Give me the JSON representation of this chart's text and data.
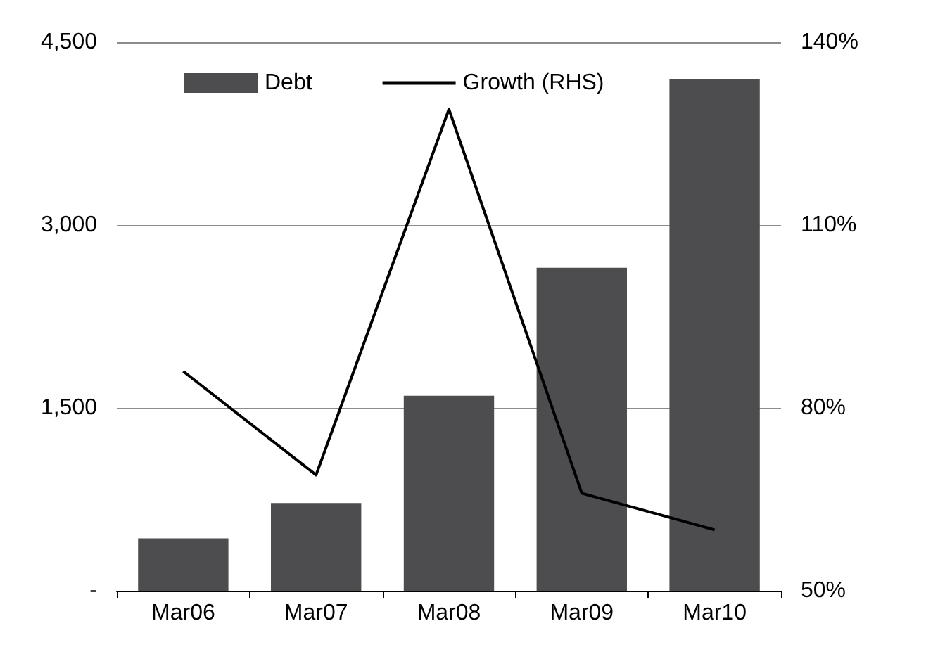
{
  "chart_data": {
    "type": "bar",
    "categories": [
      "Mar06",
      "Mar07",
      "Mar08",
      "Mar09",
      "Mar10"
    ],
    "series": [
      {
        "name": "Debt",
        "color": "#4d4d4f",
        "values": [
          430,
          720,
          1600,
          2650,
          4200
        ]
      },
      {
        "name": "Growth (RHS)",
        "type": "line",
        "axis": "y2",
        "color": "#000000",
        "values": [
          86,
          69,
          129,
          66,
          60
        ]
      }
    ],
    "ylim": [
      0,
      4500
    ],
    "yticks": [
      {
        "value": 0,
        "label": "-"
      },
      {
        "value": 1500,
        "label": "1,500"
      },
      {
        "value": 3000,
        "label": "3,000"
      },
      {
        "value": 4500,
        "label": "4,500"
      }
    ],
    "y2lim": [
      50,
      140
    ],
    "y2ticks": [
      {
        "value": 50,
        "label": "50%"
      },
      {
        "value": 80,
        "label": "80%"
      },
      {
        "value": 110,
        "label": "110%"
      },
      {
        "value": 140,
        "label": "140%"
      }
    ],
    "grid": "y",
    "legend": "top left",
    "marker": "none",
    "line_style": "solid"
  }
}
